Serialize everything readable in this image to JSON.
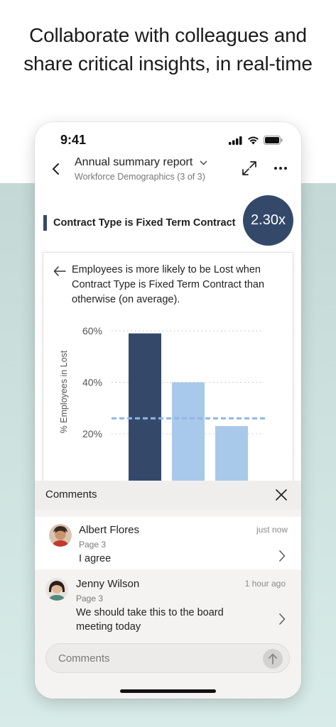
{
  "headline": "Collaborate with colleagues and share critical insights, in real-time",
  "status_bar": {
    "time": "9:41"
  },
  "app_bar": {
    "title": "Annual summary report",
    "subtitle": "Workforce Demographics (3 of 3)"
  },
  "insight": {
    "title": "Contract Type is Fixed Term Contract",
    "ratio": "2.30x",
    "description": "Employees is more likely to be Lost when Contract Type is Fixed Term Contract than otherwise (on average)."
  },
  "chart_data": {
    "type": "bar",
    "ylabel": "% Employees in Lost",
    "xlabel": "",
    "y_ticks": [
      "60%",
      "40%",
      "20%"
    ],
    "ylim": [
      0,
      60
    ],
    "values": [
      59,
      40,
      23
    ],
    "average_line": 26,
    "grid": true,
    "colors": {
      "highlight": "#34496a",
      "other": "#a9c9ea",
      "average": "#8fb6e6"
    }
  },
  "comments": {
    "title": "Comments",
    "items": [
      {
        "name": "Albert Flores",
        "page": "Page 3",
        "time": "just now",
        "text": "I agree"
      },
      {
        "name": "Jenny Wilson",
        "page": "Page 3",
        "time": "1 hour ago",
        "text": "We should take this to the board meeting today"
      }
    ],
    "input_placeholder": "Comments"
  },
  "colors": {
    "accent": "#34496a",
    "background_lower": "#c9ddda"
  },
  "icons": [
    "back-icon",
    "chevron-down-icon",
    "expand-icon",
    "more-icon",
    "arrow-left-icon",
    "close-icon",
    "chevron-right-icon",
    "send-arrow-icon",
    "signal-icon",
    "wifi-icon",
    "battery-icon"
  ]
}
